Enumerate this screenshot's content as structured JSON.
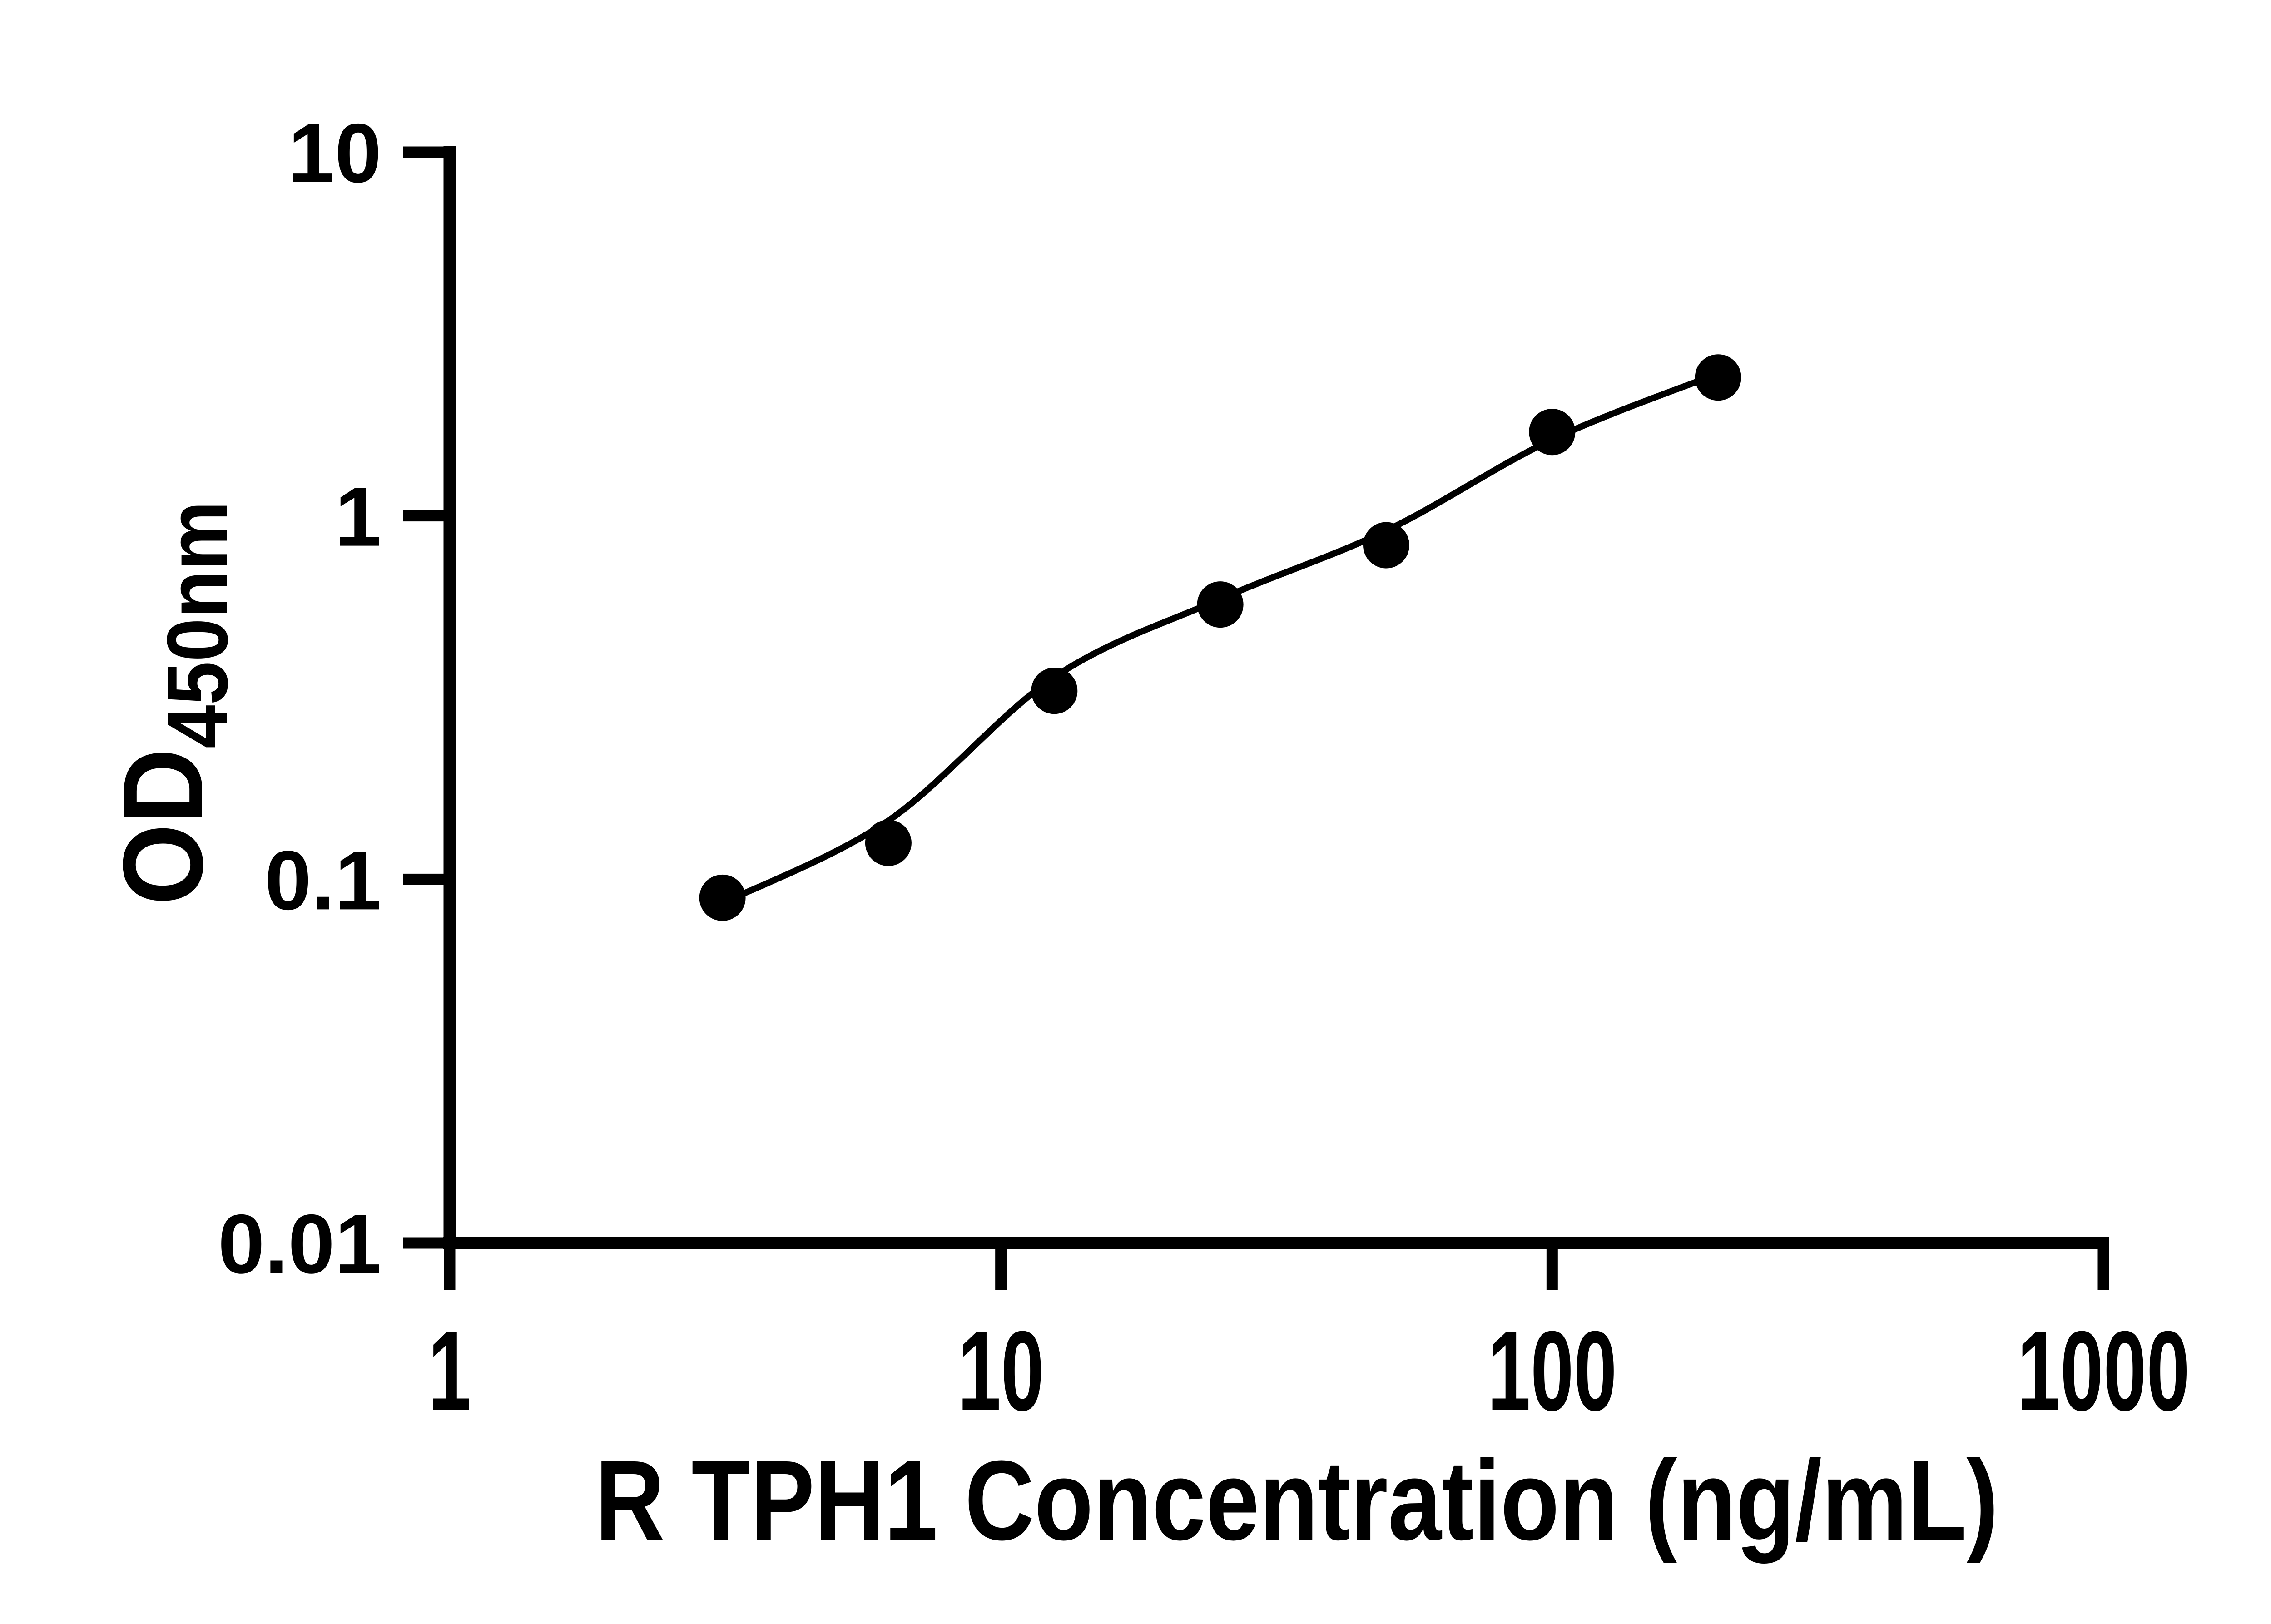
{
  "figure": {
    "background_color": "#ffffff",
    "foreground_color": "#000000"
  },
  "chart_data": {
    "type": "scatter",
    "title": "",
    "xlabel": "R TPH1 Concentration (ng/mL)",
    "ylabel_main": "OD",
    "ylabel_subscript": "450nm",
    "xscale": "log",
    "yscale": "log",
    "xlim": [
      1,
      1000
    ],
    "ylim": [
      0.01,
      10
    ],
    "grid": false,
    "legend_position": "none",
    "x_ticks": [
      {
        "value": 1,
        "label": "1"
      },
      {
        "value": 10,
        "label": "10"
      },
      {
        "value": 100,
        "label": "100"
      },
      {
        "value": 1000,
        "label": "1000"
      }
    ],
    "y_ticks": [
      {
        "value": 10,
        "label": "10"
      },
      {
        "value": 1,
        "label": "1"
      },
      {
        "value": 0.1,
        "label": "0.1"
      },
      {
        "value": 0.01,
        "label": "0.01"
      }
    ],
    "series": [
      {
        "name": "standard-points",
        "type": "scatter",
        "marker": "circle",
        "color": "#000000",
        "x": [
          3.125,
          6.25,
          12.5,
          25,
          50,
          100,
          200
        ],
        "y": [
          0.089,
          0.126,
          0.33,
          0.57,
          0.83,
          1.7,
          2.4
        ]
      },
      {
        "name": "fitted-curve",
        "type": "line",
        "color": "#000000",
        "x": [
          3.125,
          6.25,
          12.5,
          25,
          50,
          100,
          200
        ],
        "y": [
          0.086,
          0.145,
          0.36,
          0.59,
          0.91,
          1.62,
          2.46
        ]
      }
    ]
  }
}
